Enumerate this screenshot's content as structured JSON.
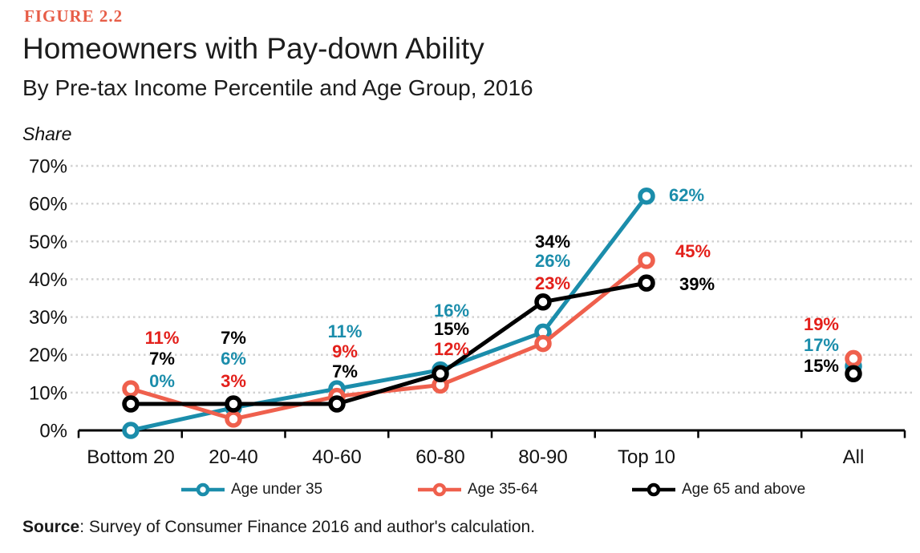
{
  "figure_label": "FIGURE 2.2",
  "title": "Homeowners with Pay-down Ability",
  "subtitle": "By Pre-tax Income Percentile and Age Group, 2016",
  "axis_unit_label": "Share",
  "source": {
    "prefix": "Source",
    "text": ": Survey of Consumer Finance 2016 and author's calculation."
  },
  "colors": {
    "figure_label": "#e75d47",
    "teal": "#1b8dab",
    "salmon_line": "#ef604d",
    "red_label": "#e3201b",
    "black": "#000000",
    "grid": "#d2d2d2",
    "axis": "#000000",
    "text": "#1a1a1a"
  },
  "chart_data": {
    "type": "line",
    "title": "Homeowners with Pay-down Ability",
    "subtitle": "By Pre-tax Income Percentile and Age Group, 2016",
    "ylabel": "Share",
    "xlabel": "",
    "categories": [
      "Bottom 20",
      "20-40",
      "40-60",
      "60-80",
      "80-90",
      "Top 10",
      "All"
    ],
    "series": [
      {
        "name": "Age under 35",
        "color": "#1b8dab",
        "label_color": "#1b8dab",
        "values": [
          0,
          6,
          11,
          16,
          26,
          62,
          17
        ]
      },
      {
        "name": "Age 35-64",
        "color": "#ef604d",
        "label_color": "#e3201b",
        "values": [
          11,
          3,
          9,
          12,
          23,
          45,
          19
        ]
      },
      {
        "name": "Age 65 and above",
        "color": "#000000",
        "label_color": "#000000",
        "values": [
          7,
          7,
          7,
          15,
          34,
          39,
          15
        ]
      }
    ],
    "ylim": [
      0,
      70
    ],
    "ytick_step": 10,
    "ytick_format": "percent",
    "grid": "horizontal-dotted",
    "legend_position": "bottom",
    "data_labels": true,
    "detached_last_category": "All"
  }
}
